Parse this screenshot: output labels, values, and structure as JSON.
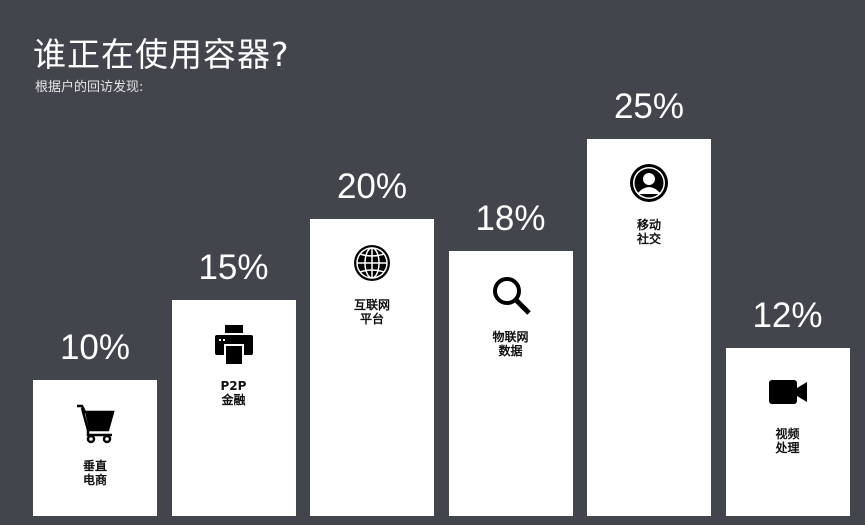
{
  "title": "谁正在使用容器?",
  "subtitle": "根据户的回访发现:",
  "chart_data": {
    "type": "bar",
    "title": "谁正在使用容器?",
    "subtitle": "根据户的回访发现:",
    "categories": [
      "垂直\n电商",
      "P2P\n金融",
      "互联网\n平台",
      "物联网\n数据",
      "移动\n社交",
      "视频\n处理"
    ],
    "values": [
      10,
      15,
      20,
      18,
      25,
      12
    ],
    "data_labels": [
      "10%",
      "15%",
      "20%",
      "18%",
      "25%",
      "12%"
    ],
    "icons": [
      "shopping-cart-icon",
      "printer-icon",
      "globe-icon",
      "magnifier-icon",
      "user-icon",
      "video-camera-icon"
    ],
    "bar_color": "#ffffff",
    "background": "#43454d",
    "ylim": [
      0,
      25
    ],
    "grid": false
  }
}
